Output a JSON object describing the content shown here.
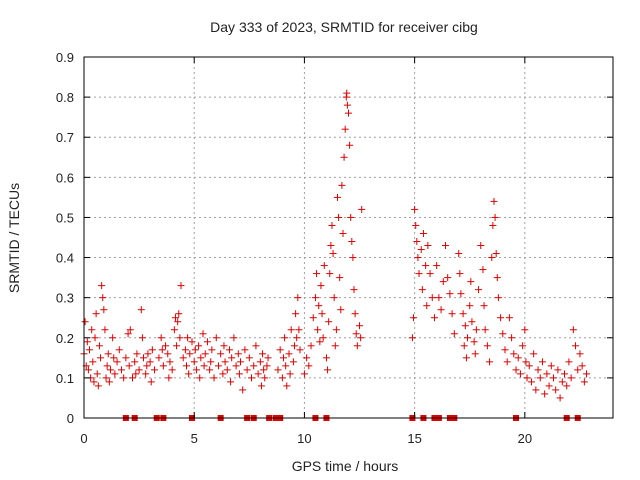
{
  "chart_data": {
    "type": "scatter",
    "title": "Day 333 of 2023, SRMTID for receiver cibg",
    "xlabel": "GPS time / hours",
    "ylabel": "SRMTID / TECUs",
    "xlim": [
      0,
      24
    ],
    "ylim": [
      0,
      0.9
    ],
    "xticks": [
      0,
      5,
      10,
      15,
      20
    ],
    "xtick_labels": [
      "0",
      "5",
      "10",
      "15",
      "20"
    ],
    "yticks": [
      0,
      0.1,
      0.2,
      0.3,
      0.4,
      0.5,
      0.6,
      0.7,
      0.8,
      0.9
    ],
    "ytick_labels": [
      "0",
      "0.1",
      "0.2",
      "0.3",
      "0.4",
      "0.5",
      "0.6",
      "0.7",
      "0.8",
      "0.9"
    ],
    "grid": true,
    "marker": "+",
    "color": "#e00000",
    "series": [
      {
        "name": "SRMTID",
        "points": [
          [
            0.0,
            0.16
          ],
          [
            0.05,
            0.24
          ],
          [
            0.1,
            0.13
          ],
          [
            0.15,
            0.19
          ],
          [
            0.2,
            0.12
          ],
          [
            0.25,
            0.17
          ],
          [
            0.3,
            0.1
          ],
          [
            0.35,
            0.22
          ],
          [
            0.4,
            0.14
          ],
          [
            0.45,
            0.09
          ],
          [
            0.5,
            0.2
          ],
          [
            0.55,
            0.26
          ],
          [
            0.6,
            0.11
          ],
          [
            0.65,
            0.08
          ],
          [
            0.7,
            0.18
          ],
          [
            0.75,
            0.15
          ],
          [
            0.8,
            0.33
          ],
          [
            0.85,
            0.3
          ],
          [
            0.9,
            0.27
          ],
          [
            0.95,
            0.22
          ],
          [
            1.0,
            0.1
          ],
          [
            1.05,
            0.13
          ],
          [
            1.1,
            0.16
          ],
          [
            1.15,
            0.09
          ],
          [
            1.2,
            0.12
          ],
          [
            1.3,
            0.2
          ],
          [
            1.35,
            0.15
          ],
          [
            1.4,
            0.11
          ],
          [
            1.5,
            0.14
          ],
          [
            1.6,
            0.17
          ],
          [
            1.7,
            0.12
          ],
          [
            1.8,
            0.1
          ],
          [
            1.9,
            0.15
          ],
          [
            2.0,
            0.21
          ],
          [
            2.05,
            0.13
          ],
          [
            2.1,
            0.22
          ],
          [
            2.2,
            0.1
          ],
          [
            2.3,
            0.14
          ],
          [
            2.35,
            0.11
          ],
          [
            2.4,
            0.16
          ],
          [
            2.5,
            0.12
          ],
          [
            2.6,
            0.27
          ],
          [
            2.65,
            0.2
          ],
          [
            2.7,
            0.15
          ],
          [
            2.8,
            0.11
          ],
          [
            2.85,
            0.13
          ],
          [
            2.9,
            0.16
          ],
          [
            3.0,
            0.14
          ],
          [
            3.05,
            0.09
          ],
          [
            3.1,
            0.17
          ],
          [
            3.2,
            0.12
          ],
          [
            3.4,
            0.15
          ],
          [
            3.5,
            0.2
          ],
          [
            3.55,
            0.17
          ],
          [
            3.6,
            0.13
          ],
          [
            3.7,
            0.18
          ],
          [
            3.8,
            0.16
          ],
          [
            3.85,
            0.1
          ],
          [
            3.9,
            0.14
          ],
          [
            4.0,
            0.12
          ],
          [
            4.1,
            0.22
          ],
          [
            4.15,
            0.25
          ],
          [
            4.2,
            0.18
          ],
          [
            4.25,
            0.24
          ],
          [
            4.3,
            0.26
          ],
          [
            4.35,
            0.2
          ],
          [
            4.4,
            0.33
          ],
          [
            4.5,
            0.15
          ],
          [
            4.6,
            0.17
          ],
          [
            4.65,
            0.13
          ],
          [
            4.7,
            0.2
          ],
          [
            4.75,
            0.11
          ],
          [
            4.8,
            0.16
          ],
          [
            4.9,
            0.19
          ],
          [
            5.0,
            0.14
          ],
          [
            5.05,
            0.17
          ],
          [
            5.1,
            0.12
          ],
          [
            5.2,
            0.18
          ],
          [
            5.25,
            0.1
          ],
          [
            5.3,
            0.15
          ],
          [
            5.4,
            0.21
          ],
          [
            5.45,
            0.13
          ],
          [
            5.5,
            0.16
          ],
          [
            5.6,
            0.19
          ],
          [
            5.7,
            0.12
          ],
          [
            5.75,
            0.14
          ],
          [
            5.8,
            0.17
          ],
          [
            5.9,
            0.1
          ],
          [
            6.0,
            0.2
          ],
          [
            6.1,
            0.13
          ],
          [
            6.2,
            0.16
          ],
          [
            6.3,
            0.11
          ],
          [
            6.35,
            0.18
          ],
          [
            6.4,
            0.14
          ],
          [
            6.5,
            0.12
          ],
          [
            6.6,
            0.17
          ],
          [
            6.65,
            0.09
          ],
          [
            6.7,
            0.15
          ],
          [
            6.8,
            0.2
          ],
          [
            6.9,
            0.13
          ],
          [
            7.0,
            0.16
          ],
          [
            7.05,
            0.11
          ],
          [
            7.1,
            0.14
          ],
          [
            7.2,
            0.07
          ],
          [
            7.3,
            0.17
          ],
          [
            7.4,
            0.12
          ],
          [
            7.5,
            0.15
          ],
          [
            7.6,
            0.1
          ],
          [
            7.7,
            0.13
          ],
          [
            7.8,
            0.18
          ],
          [
            7.9,
            0.11
          ],
          [
            8.0,
            0.14
          ],
          [
            8.05,
            0.08
          ],
          [
            8.1,
            0.16
          ],
          [
            8.15,
            0.12
          ],
          [
            8.2,
            0.1
          ],
          [
            8.3,
            0.13
          ],
          [
            8.35,
            0.15
          ],
          [
            8.8,
            0.12
          ],
          [
            8.9,
            0.17
          ],
          [
            9.0,
            0.1
          ],
          [
            9.05,
            0.15
          ],
          [
            9.1,
            0.2
          ],
          [
            9.15,
            0.13
          ],
          [
            9.2,
            0.08
          ],
          [
            9.3,
            0.16
          ],
          [
            9.35,
            0.11
          ],
          [
            9.4,
            0.22
          ],
          [
            9.5,
            0.14
          ],
          [
            9.55,
            0.18
          ],
          [
            9.6,
            0.26
          ],
          [
            9.65,
            0.2
          ],
          [
            9.7,
            0.3
          ],
          [
            9.75,
            0.22
          ],
          [
            9.8,
            0.17
          ],
          [
            10.0,
            0.11
          ],
          [
            10.1,
            0.15
          ],
          [
            10.2,
            0.13
          ],
          [
            10.3,
            0.18
          ],
          [
            10.4,
            0.25
          ],
          [
            10.5,
            0.3
          ],
          [
            10.55,
            0.36
          ],
          [
            10.6,
            0.22
          ],
          [
            10.65,
            0.28
          ],
          [
            10.7,
            0.19
          ],
          [
            10.75,
            0.33
          ],
          [
            10.8,
            0.26
          ],
          [
            10.85,
            0.2
          ],
          [
            10.9,
            0.38
          ],
          [
            11.0,
            0.15
          ],
          [
            11.05,
            0.12
          ],
          [
            11.1,
            0.24
          ],
          [
            11.15,
            0.36
          ],
          [
            11.2,
            0.43
          ],
          [
            11.25,
            0.48
          ],
          [
            11.3,
            0.41
          ],
          [
            11.35,
            0.3
          ],
          [
            11.4,
            0.18
          ],
          [
            11.45,
            0.22
          ],
          [
            11.5,
            0.55
          ],
          [
            11.55,
            0.5
          ],
          [
            11.6,
            0.35
          ],
          [
            11.65,
            0.27
          ],
          [
            11.7,
            0.58
          ],
          [
            11.75,
            0.46
          ],
          [
            11.8,
            0.65
          ],
          [
            11.85,
            0.72
          ],
          [
            11.9,
            0.8
          ],
          [
            11.92,
            0.81
          ],
          [
            11.95,
            0.78
          ],
          [
            12.0,
            0.76
          ],
          [
            12.05,
            0.68
          ],
          [
            12.1,
            0.5
          ],
          [
            12.15,
            0.44
          ],
          [
            12.2,
            0.4
          ],
          [
            12.25,
            0.32
          ],
          [
            12.3,
            0.26
          ],
          [
            12.35,
            0.21
          ],
          [
            12.4,
            0.18
          ],
          [
            12.5,
            0.23
          ],
          [
            12.55,
            0.2
          ],
          [
            12.6,
            0.52
          ],
          [
            14.9,
            0.2
          ],
          [
            14.95,
            0.25
          ],
          [
            15.0,
            0.52
          ],
          [
            15.05,
            0.48
          ],
          [
            15.1,
            0.44
          ],
          [
            15.15,
            0.4
          ],
          [
            15.2,
            0.36
          ],
          [
            15.3,
            0.42
          ],
          [
            15.35,
            0.32
          ],
          [
            15.4,
            0.46
          ],
          [
            15.5,
            0.38
          ],
          [
            15.55,
            0.28
          ],
          [
            15.6,
            0.43
          ],
          [
            15.7,
            0.36
          ],
          [
            15.8,
            0.3
          ],
          [
            15.9,
            0.25
          ],
          [
            16.0,
            0.38
          ],
          [
            16.1,
            0.3
          ],
          [
            16.2,
            0.27
          ],
          [
            16.3,
            0.34
          ],
          [
            16.4,
            0.43
          ],
          [
            16.5,
            0.35
          ],
          [
            16.6,
            0.31
          ],
          [
            16.7,
            0.26
          ],
          [
            16.8,
            0.21
          ],
          [
            17.0,
            0.41
          ],
          [
            17.05,
            0.36
          ],
          [
            17.1,
            0.31
          ],
          [
            17.2,
            0.26
          ],
          [
            17.25,
            0.18
          ],
          [
            17.3,
            0.23
          ],
          [
            17.35,
            0.15
          ],
          [
            17.4,
            0.2
          ],
          [
            17.5,
            0.28
          ],
          [
            17.55,
            0.34
          ],
          [
            17.6,
            0.24
          ],
          [
            17.7,
            0.19
          ],
          [
            17.75,
            0.16
          ],
          [
            17.8,
            0.22
          ],
          [
            17.9,
            0.32
          ],
          [
            18.0,
            0.43
          ],
          [
            18.1,
            0.37
          ],
          [
            18.15,
            0.28
          ],
          [
            18.2,
            0.22
          ],
          [
            18.3,
            0.18
          ],
          [
            18.4,
            0.14
          ],
          [
            18.5,
            0.4
          ],
          [
            18.55,
            0.48
          ],
          [
            18.6,
            0.54
          ],
          [
            18.65,
            0.5
          ],
          [
            18.7,
            0.41
          ],
          [
            18.75,
            0.35
          ],
          [
            18.8,
            0.3
          ],
          [
            18.9,
            0.25
          ],
          [
            19.0,
            0.21
          ],
          [
            19.1,
            0.17
          ],
          [
            19.2,
            0.14
          ],
          [
            19.3,
            0.25
          ],
          [
            19.4,
            0.2
          ],
          [
            19.5,
            0.16
          ],
          [
            19.6,
            0.12
          ],
          [
            19.7,
            0.15
          ],
          [
            19.8,
            0.11
          ],
          [
            19.9,
            0.18
          ],
          [
            20.0,
            0.22
          ],
          [
            20.05,
            0.14
          ],
          [
            20.1,
            0.1
          ],
          [
            20.2,
            0.13
          ],
          [
            20.3,
            0.09
          ],
          [
            20.4,
            0.16
          ],
          [
            20.5,
            0.07
          ],
          [
            20.6,
            0.12
          ],
          [
            20.7,
            0.1
          ],
          [
            20.8,
            0.14
          ],
          [
            20.9,
            0.06
          ],
          [
            21.0,
            0.11
          ],
          [
            21.1,
            0.08
          ],
          [
            21.2,
            0.13
          ],
          [
            21.3,
            0.1
          ],
          [
            21.4,
            0.07
          ],
          [
            21.5,
            0.12
          ],
          [
            21.6,
            0.05
          ],
          [
            21.7,
            0.09
          ],
          [
            21.8,
            0.11
          ],
          [
            21.9,
            0.08
          ],
          [
            22.0,
            0.14
          ],
          [
            22.1,
            0.1
          ],
          [
            22.2,
            0.22
          ],
          [
            22.3,
            0.18
          ],
          [
            22.4,
            0.12
          ],
          [
            22.5,
            0.16
          ],
          [
            22.6,
            0.13
          ],
          [
            22.7,
            0.09
          ],
          [
            22.8,
            0.11
          ]
        ]
      }
    ],
    "zero_points_x": [
      1.9,
      2.3,
      3.3,
      3.6,
      4.9,
      6.2,
      7.4,
      7.7,
      8.4,
      8.7,
      8.9,
      10.5,
      11.0,
      14.9,
      15.4,
      15.9,
      16.1,
      16.6,
      16.8,
      19.6,
      21.9,
      22.4
    ]
  }
}
